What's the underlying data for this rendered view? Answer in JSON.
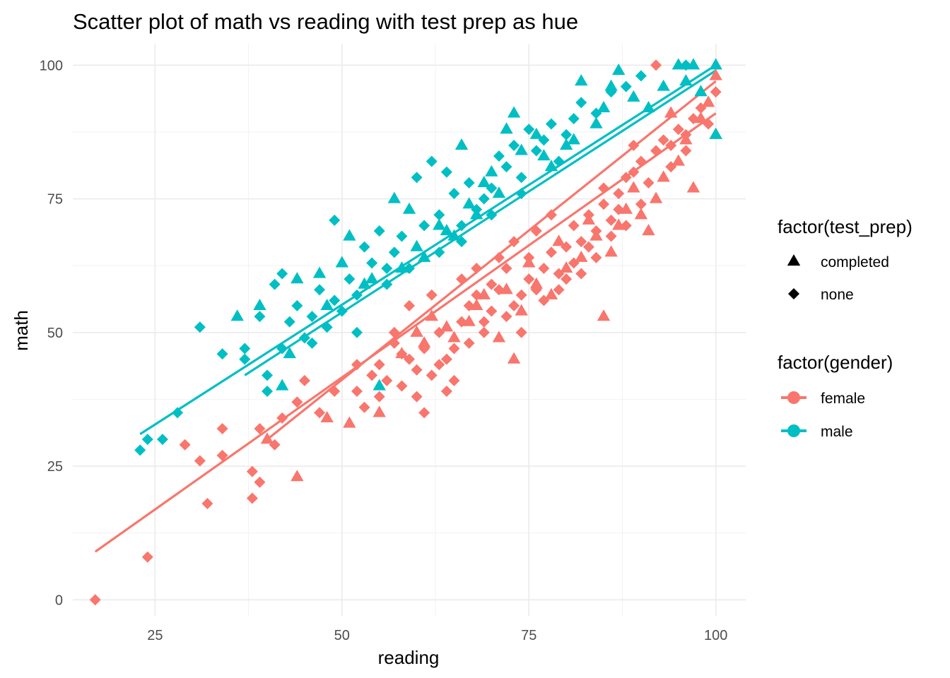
{
  "chart_data": {
    "type": "scatter",
    "title": "Scatter plot of math vs reading with test prep as hue",
    "xlabel": "reading",
    "ylabel": "math",
    "xlim": [
      14,
      104
    ],
    "ylim": [
      -3,
      104
    ],
    "x_ticks": [
      25,
      50,
      75,
      100
    ],
    "x_tick_labels": [
      "25",
      "50",
      "75",
      "100"
    ],
    "y_ticks": [
      0,
      25,
      50,
      75,
      100
    ],
    "y_tick_labels": [
      "0",
      "25",
      "50",
      "75",
      "100"
    ],
    "grid": true,
    "legend_position": "right",
    "shape_legend": {
      "title": "factor(test_prep)",
      "entries": [
        {
          "label": "completed",
          "shape": "triangle"
        },
        {
          "label": "none",
          "shape": "diamond"
        }
      ]
    },
    "color_legend": {
      "title": "factor(gender)",
      "entries": [
        {
          "label": "female",
          "color": "#F8766D"
        },
        {
          "label": "male",
          "color": "#00BFC4"
        }
      ]
    },
    "series": [
      {
        "name": "female",
        "shape": "diamond",
        "color": "#F8766D",
        "points": [
          [
            17,
            0
          ],
          [
            24,
            8
          ],
          [
            29,
            29
          ],
          [
            31,
            26
          ],
          [
            32,
            18
          ],
          [
            34,
            32
          ],
          [
            34,
            27
          ],
          [
            38,
            24
          ],
          [
            38,
            19
          ],
          [
            39,
            22
          ],
          [
            39,
            32
          ],
          [
            41,
            29
          ],
          [
            42,
            34
          ],
          [
            44,
            37
          ],
          [
            45,
            41
          ],
          [
            47,
            35
          ],
          [
            49,
            39
          ],
          [
            52,
            44
          ],
          [
            52,
            39
          ],
          [
            53,
            36
          ],
          [
            54,
            42
          ],
          [
            55,
            44
          ],
          [
            56,
            41
          ],
          [
            57,
            48
          ],
          [
            58,
            40
          ],
          [
            59,
            45
          ],
          [
            60,
            38
          ],
          [
            60,
            43
          ],
          [
            61,
            35
          ],
          [
            61,
            47
          ],
          [
            62,
            42
          ],
          [
            63,
            50
          ],
          [
            64,
            39
          ],
          [
            64,
            45
          ],
          [
            65,
            47
          ],
          [
            66,
            52
          ],
          [
            67,
            55
          ],
          [
            67,
            48
          ],
          [
            68,
            57
          ],
          [
            69,
            52
          ],
          [
            70,
            59
          ],
          [
            70,
            54
          ],
          [
            71,
            58
          ],
          [
            72,
            62
          ],
          [
            73,
            55
          ],
          [
            74,
            57
          ],
          [
            75,
            60
          ],
          [
            75,
            64
          ],
          [
            76,
            58
          ],
          [
            77,
            62
          ],
          [
            78,
            65
          ],
          [
            79,
            61
          ],
          [
            80,
            66
          ],
          [
            80,
            60
          ],
          [
            81,
            70
          ],
          [
            82,
            67
          ],
          [
            83,
            72
          ],
          [
            84,
            69
          ],
          [
            85,
            74
          ],
          [
            86,
            71
          ],
          [
            87,
            76
          ],
          [
            88,
            79
          ],
          [
            89,
            80
          ],
          [
            90,
            82
          ],
          [
            91,
            78
          ],
          [
            92,
            84
          ],
          [
            92,
            100
          ],
          [
            93,
            86
          ],
          [
            94,
            85
          ],
          [
            95,
            88
          ],
          [
            96,
            87
          ],
          [
            97,
            90
          ],
          [
            98,
            92
          ],
          [
            99,
            89
          ],
          [
            100,
            95
          ],
          [
            57,
            50
          ],
          [
            59,
            55
          ],
          [
            62,
            57
          ],
          [
            66,
            60
          ],
          [
            68,
            62
          ],
          [
            71,
            64
          ],
          [
            73,
            67
          ],
          [
            76,
            69
          ],
          [
            78,
            72
          ],
          [
            81,
            63
          ],
          [
            83,
            66
          ],
          [
            85,
            77
          ],
          [
            87,
            73
          ],
          [
            89,
            85
          ],
          [
            55,
            38
          ],
          [
            58,
            46
          ],
          [
            63,
            44
          ],
          [
            65,
            41
          ],
          [
            69,
            50
          ],
          [
            72,
            53
          ],
          [
            74,
            50
          ],
          [
            77,
            56
          ],
          [
            79,
            58
          ],
          [
            82,
            61
          ],
          [
            84,
            64
          ],
          [
            86,
            68
          ],
          [
            88,
            70
          ],
          [
            90,
            74
          ],
          [
            94,
            81
          ],
          [
            96,
            84
          ]
        ]
      },
      {
        "name": "female",
        "shape": "triangle",
        "color": "#F8766D",
        "points": [
          [
            40,
            30
          ],
          [
            44,
            23
          ],
          [
            48,
            34
          ],
          [
            51,
            33
          ],
          [
            55,
            35
          ],
          [
            58,
            46
          ],
          [
            60,
            50
          ],
          [
            62,
            53
          ],
          [
            65,
            49
          ],
          [
            67,
            52
          ],
          [
            69,
            57
          ],
          [
            71,
            49
          ],
          [
            73,
            45
          ],
          [
            74,
            54
          ],
          [
            76,
            59
          ],
          [
            78,
            57
          ],
          [
            80,
            62
          ],
          [
            82,
            64
          ],
          [
            84,
            68
          ],
          [
            85,
            53
          ],
          [
            86,
            65
          ],
          [
            87,
            70
          ],
          [
            88,
            73
          ],
          [
            90,
            72
          ],
          [
            91,
            69
          ],
          [
            92,
            75
          ],
          [
            93,
            79
          ],
          [
            95,
            82
          ],
          [
            96,
            86
          ],
          [
            97,
            77
          ],
          [
            98,
            90
          ],
          [
            100,
            98
          ],
          [
            100,
            87
          ],
          [
            99,
            93
          ],
          [
            94,
            91
          ],
          [
            89,
            77
          ],
          [
            83,
            71
          ],
          [
            79,
            67
          ],
          [
            75,
            63
          ],
          [
            72,
            58
          ],
          [
            68,
            55
          ],
          [
            64,
            51
          ],
          [
            61,
            48
          ]
        ]
      },
      {
        "name": "male",
        "shape": "diamond",
        "color": "#00BFC4",
        "points": [
          [
            23,
            28
          ],
          [
            24,
            30
          ],
          [
            26,
            30
          ],
          [
            28,
            35
          ],
          [
            31,
            51
          ],
          [
            34,
            46
          ],
          [
            37,
            47
          ],
          [
            37,
            45
          ],
          [
            39,
            53
          ],
          [
            40,
            42
          ],
          [
            40,
            39
          ],
          [
            41,
            59
          ],
          [
            42,
            61
          ],
          [
            42,
            47
          ],
          [
            43,
            52
          ],
          [
            44,
            55
          ],
          [
            45,
            49
          ],
          [
            46,
            53
          ],
          [
            47,
            58
          ],
          [
            48,
            51
          ],
          [
            49,
            71
          ],
          [
            50,
            54
          ],
          [
            51,
            60
          ],
          [
            52,
            57
          ],
          [
            53,
            66
          ],
          [
            54,
            63
          ],
          [
            55,
            69
          ],
          [
            56,
            59
          ],
          [
            57,
            65
          ],
          [
            58,
            68
          ],
          [
            59,
            62
          ],
          [
            60,
            79
          ],
          [
            61,
            70
          ],
          [
            62,
            82
          ],
          [
            63,
            72
          ],
          [
            64,
            80
          ],
          [
            65,
            76
          ],
          [
            66,
            67
          ],
          [
            67,
            78
          ],
          [
            68,
            73
          ],
          [
            69,
            75
          ],
          [
            70,
            77
          ],
          [
            71,
            83
          ],
          [
            72,
            81
          ],
          [
            73,
            85
          ],
          [
            74,
            79
          ],
          [
            75,
            88
          ],
          [
            76,
            84
          ],
          [
            77,
            86
          ],
          [
            78,
            89
          ],
          [
            79,
            82
          ],
          [
            80,
            87
          ],
          [
            81,
            90
          ],
          [
            82,
            93
          ],
          [
            84,
            91
          ],
          [
            86,
            95
          ],
          [
            88,
            96
          ],
          [
            90,
            98
          ],
          [
            96,
            100
          ],
          [
            63,
            65
          ],
          [
            66,
            70
          ],
          [
            70,
            72
          ],
          [
            74,
            76
          ],
          [
            56,
            62
          ],
          [
            52,
            50
          ],
          [
            49,
            56
          ],
          [
            46,
            48
          ]
        ]
      },
      {
        "name": "male",
        "shape": "triangle",
        "color": "#00BFC4",
        "points": [
          [
            36,
            53
          ],
          [
            39,
            55
          ],
          [
            42,
            40
          ],
          [
            44,
            60
          ],
          [
            47,
            61
          ],
          [
            50,
            63
          ],
          [
            51,
            68
          ],
          [
            53,
            59
          ],
          [
            55,
            40
          ],
          [
            57,
            75
          ],
          [
            59,
            73
          ],
          [
            61,
            64
          ],
          [
            63,
            70
          ],
          [
            65,
            68
          ],
          [
            66,
            85
          ],
          [
            67,
            74
          ],
          [
            69,
            78
          ],
          [
            70,
            80
          ],
          [
            72,
            88
          ],
          [
            73,
            91
          ],
          [
            74,
            84
          ],
          [
            76,
            87
          ],
          [
            78,
            81
          ],
          [
            80,
            85
          ],
          [
            82,
            97
          ],
          [
            84,
            89
          ],
          [
            86,
            96
          ],
          [
            87,
            99
          ],
          [
            89,
            94
          ],
          [
            91,
            92
          ],
          [
            93,
            96
          ],
          [
            95,
            100
          ],
          [
            96,
            97
          ],
          [
            97,
            100
          ],
          [
            100,
            100
          ],
          [
            100,
            87
          ],
          [
            98,
            95
          ],
          [
            85,
            92
          ],
          [
            81,
            86
          ],
          [
            77,
            83
          ],
          [
            71,
            76
          ],
          [
            68,
            72
          ],
          [
            64,
            69
          ],
          [
            60,
            66
          ],
          [
            58,
            62
          ],
          [
            54,
            60
          ],
          [
            48,
            55
          ],
          [
            43,
            46
          ]
        ]
      }
    ],
    "trend_lines": [
      {
        "name": "female",
        "test_prep": "none",
        "color": "#F8766D",
        "x": [
          17,
          100
        ],
        "y": [
          9,
          91
        ]
      },
      {
        "name": "female",
        "test_prep": "completed",
        "color": "#F8766D",
        "x": [
          40,
          100
        ],
        "y": [
          30,
          97
        ]
      },
      {
        "name": "male",
        "test_prep": "none",
        "color": "#00BFC4",
        "x": [
          23,
          100
        ],
        "y": [
          31,
          100
        ]
      },
      {
        "name": "male",
        "test_prep": "completed",
        "color": "#00BFC4",
        "x": [
          37,
          100
        ],
        "y": [
          42,
          99
        ]
      }
    ]
  }
}
